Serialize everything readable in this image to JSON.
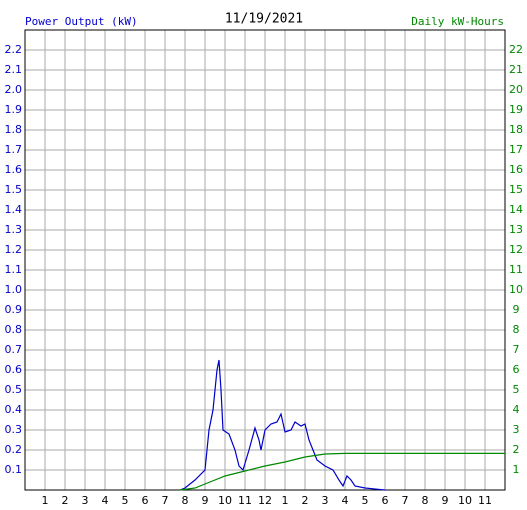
{
  "chart_data": {
    "type": "line",
    "title": "11/19/2021",
    "xlim": [
      0,
      24
    ],
    "xticks": [
      1,
      2,
      3,
      4,
      5,
      6,
      7,
      8,
      9,
      10,
      11,
      {
        "value": 12,
        "label": "12"
      },
      {
        "value": 13,
        "label": "1"
      },
      {
        "value": 14,
        "label": "2"
      },
      {
        "value": 15,
        "label": "3"
      },
      {
        "value": 16,
        "label": "4"
      },
      {
        "value": 17,
        "label": "5"
      },
      {
        "value": 18,
        "label": "6"
      },
      {
        "value": 19,
        "label": "7"
      },
      {
        "value": 20,
        "label": "8"
      },
      {
        "value": 21,
        "label": "9"
      },
      {
        "value": 22,
        "label": "10"
      },
      {
        "value": 23,
        "label": "11"
      }
    ],
    "ylim": [
      0,
      2.3
    ],
    "yticks": [
      0.1,
      0.2,
      0.3,
      0.4,
      0.5,
      0.6,
      0.7,
      0.8,
      0.9,
      {
        "value": 1,
        "label": "1.0"
      },
      1.1,
      1.2,
      1.3,
      1.4,
      1.5,
      1.6,
      1.7,
      1.8,
      1.9,
      {
        "value": 2,
        "label": "2.0"
      },
      2.1,
      2.2
    ],
    "y2lim": [
      0,
      23
    ],
    "y2ticks": [
      1,
      2,
      3,
      4,
      5,
      6,
      7,
      8,
      9,
      10,
      11,
      12,
      13,
      14,
      15,
      16,
      17,
      18,
      19,
      20,
      21,
      22
    ],
    "grid": true,
    "series": [
      {
        "name": "Power Output (kW)",
        "color": "#0000cc",
        "x": [
          7.75,
          8,
          8.5,
          9,
          9.1,
          9.2,
          9.4,
          9.6,
          9.7,
          9.8,
          9.9,
          10.2,
          10.5,
          10.7,
          10.9,
          11.2,
          11.5,
          11.7,
          11.8,
          12,
          12.3,
          12.6,
          12.8,
          13,
          13.3,
          13.5,
          13.8,
          14,
          14.2,
          14.4,
          14.6,
          15,
          15.4,
          15.7,
          15.9,
          16.1,
          16.3,
          16.5,
          17,
          18
        ],
        "values": [
          0,
          0.01,
          0.05,
          0.1,
          0.2,
          0.3,
          0.4,
          0.6,
          0.65,
          0.5,
          0.3,
          0.28,
          0.2,
          0.12,
          0.1,
          0.2,
          0.31,
          0.25,
          0.2,
          0.3,
          0.33,
          0.34,
          0.38,
          0.29,
          0.3,
          0.34,
          0.32,
          0.33,
          0.25,
          0.2,
          0.15,
          0.12,
          0.1,
          0.05,
          0.02,
          0.07,
          0.05,
          0.02,
          0.01,
          0
        ]
      },
      {
        "name": "Daily kW-Hours",
        "color": "#008800",
        "axis": "y2",
        "x": [
          7.75,
          8.5,
          9,
          10,
          11,
          12,
          13,
          14,
          15,
          16,
          24
        ],
        "values": [
          0,
          0.1,
          0.3,
          0.7,
          0.95,
          1.2,
          1.4,
          1.65,
          1.8,
          1.83,
          1.83
        ]
      }
    ]
  }
}
